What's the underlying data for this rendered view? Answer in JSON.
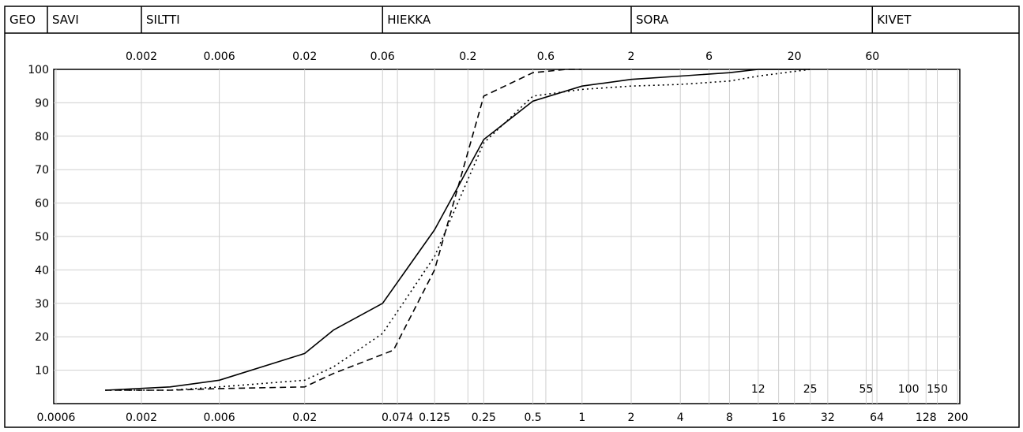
{
  "header": {
    "bands": [
      {
        "label": "GEO",
        "from": null,
        "to": null
      },
      {
        "label": "SAVI",
        "from": null,
        "to": 0.002
      },
      {
        "label": "SILTTI",
        "from": 0.002,
        "to": 0.06
      },
      {
        "label": "HIEKKA",
        "from": 0.06,
        "to": 2
      },
      {
        "label": "SORA",
        "from": 2,
        "to": 60
      },
      {
        "label": "KIVET",
        "from": 60,
        "to": null
      }
    ]
  },
  "chart_data": {
    "type": "line",
    "x_scale": "log",
    "xlim": [
      0.0006,
      200
    ],
    "ylim": [
      0,
      100
    ],
    "yticks": [
      10,
      20,
      30,
      40,
      50,
      60,
      70,
      80,
      90,
      100
    ],
    "top_ticks": [
      "0.002",
      "0.006",
      "0.02",
      "0.06",
      "0.2",
      "0.6",
      "2",
      "6",
      "20",
      "60"
    ],
    "bottom_ticks": [
      "0.0006",
      "0.002",
      "0.006",
      "0.02",
      "0.074",
      "0.125",
      "0.25",
      "0.5",
      "1",
      "2",
      "4",
      "8",
      "16",
      "32",
      "64",
      "128",
      "200"
    ],
    "inner_ticks": [
      "12",
      "25",
      "55",
      "100",
      "150"
    ],
    "series": [
      {
        "style": "solid",
        "points": [
          [
            0.0012,
            4
          ],
          [
            0.003,
            5
          ],
          [
            0.006,
            7
          ],
          [
            0.02,
            15
          ],
          [
            0.03,
            22
          ],
          [
            0.06,
            30
          ],
          [
            0.125,
            52
          ],
          [
            0.25,
            79
          ],
          [
            0.5,
            90.5
          ],
          [
            1,
            95
          ],
          [
            2,
            97
          ],
          [
            4,
            98
          ],
          [
            8,
            99
          ],
          [
            12,
            100
          ],
          [
            25,
            100
          ]
        ]
      },
      {
        "style": "dashed",
        "points": [
          [
            0.0012,
            4
          ],
          [
            0.003,
            4
          ],
          [
            0.006,
            4.5
          ],
          [
            0.02,
            5
          ],
          [
            0.03,
            9
          ],
          [
            0.07,
            16
          ],
          [
            0.125,
            40
          ],
          [
            0.25,
            92
          ],
          [
            0.5,
            99
          ],
          [
            0.8,
            100
          ],
          [
            1,
            100
          ]
        ]
      },
      {
        "style": "dotted",
        "points": [
          [
            0.0012,
            4
          ],
          [
            0.003,
            4
          ],
          [
            0.006,
            5
          ],
          [
            0.02,
            7
          ],
          [
            0.03,
            11
          ],
          [
            0.06,
            21
          ],
          [
            0.125,
            44
          ],
          [
            0.25,
            78
          ],
          [
            0.5,
            92
          ],
          [
            1,
            94
          ],
          [
            2,
            95
          ],
          [
            4,
            95.5
          ],
          [
            8,
            96.5
          ],
          [
            12,
            98
          ],
          [
            25,
            100
          ]
        ]
      }
    ]
  }
}
